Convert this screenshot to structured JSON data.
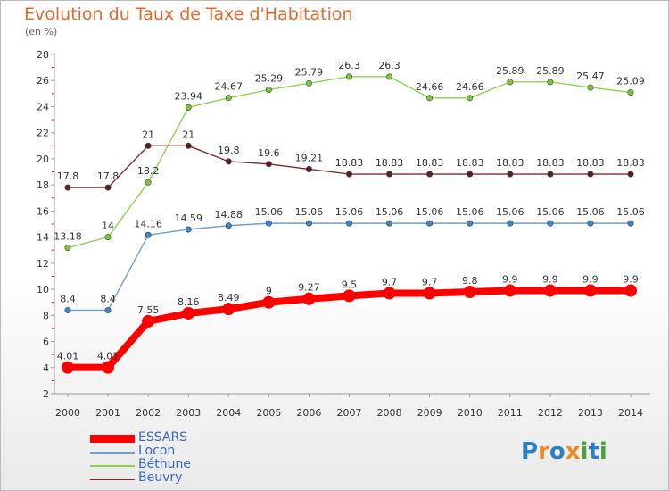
{
  "chart_data": {
    "type": "line",
    "title": "Evolution du Taux de Taxe d'Habitation",
    "subtitle": "(en %)",
    "x": [
      "2000",
      "2001",
      "2002",
      "2003",
      "2004",
      "2005",
      "2006",
      "2007",
      "2008",
      "2009",
      "2010",
      "2011",
      "2012",
      "2013",
      "2014"
    ],
    "ylim": [
      2,
      28
    ],
    "yticks": [
      2,
      4,
      6,
      8,
      10,
      12,
      14,
      16,
      18,
      20,
      22,
      24,
      26,
      28
    ],
    "grid": false,
    "legend_position": "bottom-left",
    "series": [
      {
        "name": "Béthune",
        "color": "#8fd14f",
        "markerColor": "#7cc53d",
        "values": [
          13.18,
          14,
          18.2,
          23.94,
          24.67,
          25.29,
          25.79,
          26.3,
          26.3,
          24.66,
          24.66,
          25.89,
          25.89,
          25.47,
          25.09
        ],
        "labels": [
          "13.18",
          "14",
          "18.2",
          "23.94",
          "24.67",
          "25.29",
          "25.79",
          "26.3",
          "26.3",
          "24.66",
          "24.66",
          "25.89",
          "25.89",
          "25.47",
          "25.09"
        ]
      },
      {
        "name": "Beuvry",
        "color": "#7a2e2e",
        "markerColor": "#5c1f1f",
        "values": [
          17.8,
          17.8,
          21,
          21,
          19.8,
          19.6,
          19.21,
          18.83,
          18.83,
          18.83,
          18.83,
          18.83,
          18.83,
          18.83,
          18.83
        ],
        "labels": [
          "17.8",
          "17.8",
          "21",
          "21",
          "19.8",
          "19.6",
          "19.21",
          "18.83",
          "18.83",
          "18.83",
          "18.83",
          "18.83",
          "18.83",
          "18.83",
          "18.83"
        ]
      },
      {
        "name": "Locon",
        "color": "#6a9fd4",
        "markerColor": "#3d86c9",
        "values": [
          8.4,
          8.4,
          14.16,
          14.59,
          14.88,
          15.06,
          15.06,
          15.06,
          15.06,
          15.06,
          15.06,
          15.06,
          15.06,
          15.06,
          15.06
        ],
        "labels": [
          "8.4",
          "8.4",
          "14.16",
          "14.59",
          "14.88",
          "15.06",
          "15.06",
          "15.06",
          "15.06",
          "15.06",
          "15.06",
          "15.06",
          "15.06",
          "15.06",
          "15.06"
        ]
      },
      {
        "name": "ESSARS",
        "color": "#ff0000",
        "markerColor": "#ff0000",
        "values": [
          4.01,
          4.01,
          7.55,
          8.16,
          8.49,
          9,
          9.27,
          9.5,
          9.7,
          9.7,
          9.8,
          9.9,
          9.9,
          9.9,
          9.9
        ],
        "labels": [
          "4.01",
          "4.01",
          "7.55",
          "8.16",
          "8.49",
          "9",
          "9.27",
          "9.5",
          "9.7",
          "9.7",
          "9.8",
          "9.9",
          "9.9",
          "9.9",
          "9.9"
        ]
      }
    ]
  },
  "legend": {
    "items": [
      {
        "label": "ESSARS",
        "color": "#ff0000"
      },
      {
        "label": "Locon",
        "color": "#6a9fd4"
      },
      {
        "label": "Béthune",
        "color": "#8fd14f"
      },
      {
        "label": "Beuvry",
        "color": "#7a2e2e"
      }
    ]
  },
  "logo": {
    "text": "Proxiti",
    "letters": [
      {
        "ch": "P",
        "color": "#2d7fc1"
      },
      {
        "ch": "r",
        "color": "#f08a24"
      },
      {
        "ch": "o",
        "color": "#2d7fc1"
      },
      {
        "ch": "x",
        "color": "#f08a24"
      },
      {
        "ch": "i",
        "color": "#4aa33c"
      },
      {
        "ch": "t",
        "color": "#2d7fc1"
      },
      {
        "ch": "i",
        "color": "#4aa33c"
      }
    ]
  }
}
